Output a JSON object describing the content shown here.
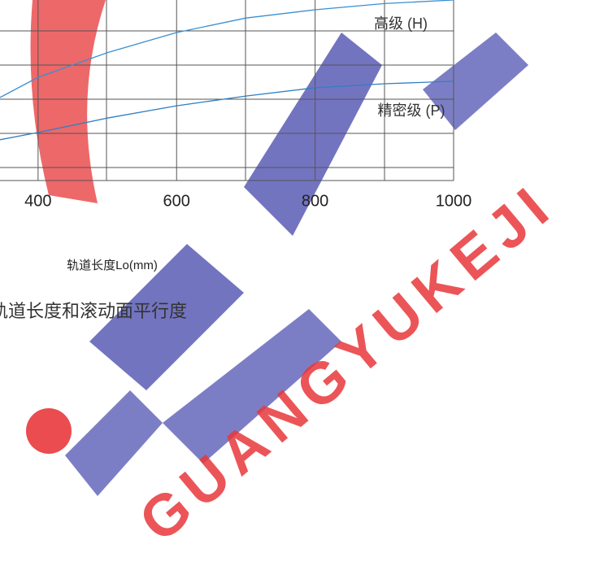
{
  "chart_data": {
    "type": "line",
    "x_label": "轨道长度Lo(mm)",
    "caption": "轨道长度和滚动面平行度",
    "x": [
      345,
      400,
      500,
      600,
      700,
      800,
      900,
      1000
    ],
    "series": [
      {
        "name": "高级 (H)",
        "color": "#3a8fd0",
        "values": [
          23,
          28.6,
          35.4,
          41,
          45,
          47.3,
          49,
          50
        ]
      },
      {
        "name": "精密级 (P)",
        "color": "#2f7fc4",
        "values": [
          11.3,
          13.3,
          17.3,
          20.7,
          23.4,
          25.7,
          26.8,
          27.5
        ]
      }
    ],
    "xlim": [
      345,
      1000
    ],
    "ylim": [
      0,
      50
    ],
    "xticks": [
      400,
      600,
      800,
      1000
    ],
    "watermark": "GUANGYUKEJI"
  }
}
